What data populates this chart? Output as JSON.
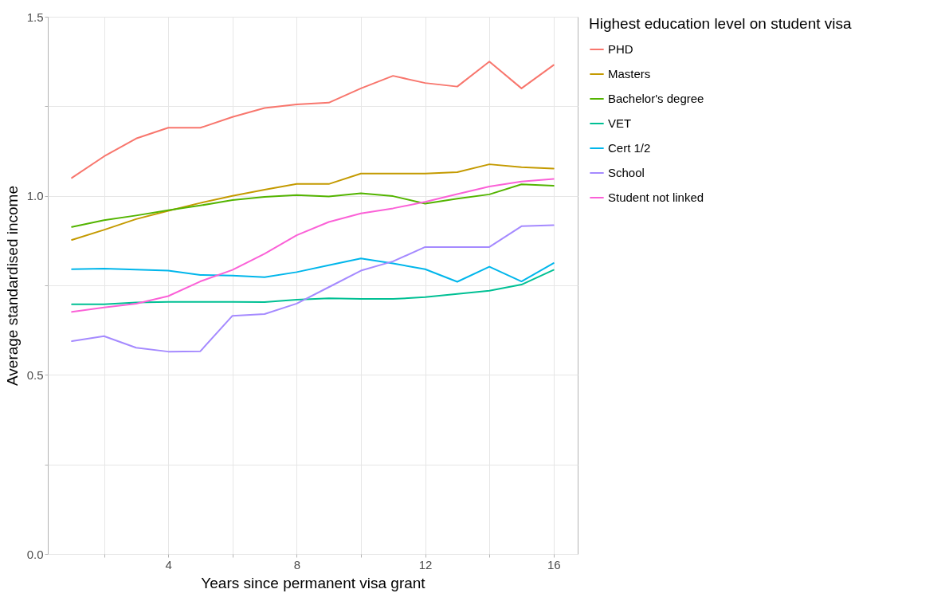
{
  "chart_data": {
    "type": "line",
    "xlabel": "Years since permanent visa grant",
    "ylabel": "Average standardised income",
    "legend_title": "Highest education level on student visa",
    "x": [
      1,
      2,
      3,
      4,
      5,
      6,
      7,
      8,
      9,
      10,
      11,
      12,
      13,
      14,
      15,
      16
    ],
    "xlim": [
      0.25,
      16.75
    ],
    "xticks": [
      {
        "value": 2,
        "label": null
      },
      4,
      {
        "value": 6,
        "label": null
      },
      8,
      {
        "value": 10,
        "label": null
      },
      12,
      {
        "value": 14,
        "label": null
      },
      16
    ],
    "ylim": [
      0,
      1.5
    ],
    "yticks": [
      {
        "value": 0,
        "label": "0.0"
      },
      {
        "value": 0.25,
        "label": null
      },
      0.5,
      {
        "value": 0.75,
        "label": null
      },
      {
        "value": 1,
        "label": "1.0"
      },
      {
        "value": 1.25,
        "label": null
      },
      1.5
    ],
    "grid": true,
    "legend": "right",
    "marker": "none",
    "line_style": "solid",
    "series": [
      {
        "name": "PHD",
        "color": "#f8766d",
        "values": [
          1.05,
          1.11,
          1.16,
          1.19,
          1.19,
          1.22,
          1.245,
          1.255,
          1.26,
          1.3,
          1.335,
          1.315,
          1.305,
          1.375,
          1.3,
          1.365
        ]
      },
      {
        "name": "Masters",
        "color": "#c49a00",
        "values": [
          0.877,
          0.905,
          0.935,
          0.958,
          0.98,
          1.0,
          1.017,
          1.033,
          1.033,
          1.062,
          1.062,
          1.062,
          1.066,
          1.088,
          1.08,
          1.076
        ]
      },
      {
        "name": "Bachelor's degree",
        "color": "#53b400",
        "values": [
          0.913,
          0.932,
          0.945,
          0.96,
          0.973,
          0.988,
          0.997,
          1.002,
          0.998,
          1.007,
          0.999,
          0.978,
          0.992,
          1.004,
          1.032,
          1.028
        ]
      },
      {
        "name": "VET",
        "color": "#00c094",
        "values": [
          0.697,
          0.697,
          0.702,
          0.704,
          0.704,
          0.704,
          0.703,
          0.71,
          0.714,
          0.712,
          0.712,
          0.717,
          0.726,
          0.735,
          0.752,
          0.793
        ]
      },
      {
        "name": "Cert 1/2",
        "color": "#00b6eb",
        "values": [
          0.795,
          0.797,
          0.794,
          0.791,
          0.779,
          0.777,
          0.773,
          0.787,
          0.806,
          0.825,
          0.811,
          0.795,
          0.76,
          0.802,
          0.761,
          0.812
        ]
      },
      {
        "name": "School",
        "color": "#a58aff",
        "values": [
          0.594,
          0.608,
          0.576,
          0.565,
          0.566,
          0.665,
          0.67,
          0.699,
          0.745,
          0.791,
          0.817,
          0.857,
          0.857,
          0.857,
          0.915,
          0.918
        ]
      },
      {
        "name": "Student not linked",
        "color": "#fb61d7",
        "values": [
          0.676,
          0.688,
          0.699,
          0.72,
          0.761,
          0.793,
          0.838,
          0.89,
          0.927,
          0.951,
          0.965,
          0.983,
          1.005,
          1.026,
          1.04,
          1.047
        ]
      }
    ]
  }
}
